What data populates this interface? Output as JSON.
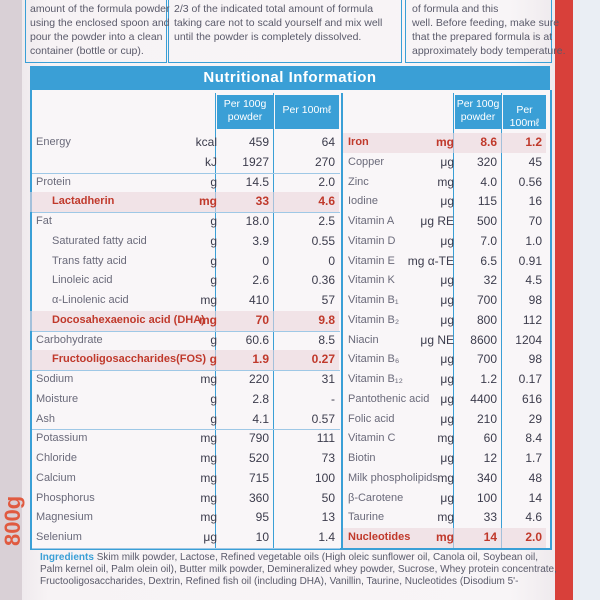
{
  "instructions": [
    "amount of the formula powder\nusing the enclosed spoon and\npour the powder into a clean\ncontainer (bottle or cup).",
    "2/3 of the indicated total amount of formula\ntaking care not to scald yourself and mix well\nuntil the powder is completely dissolved.",
    "of formula and this\nwell. Before feeding, make sure\nthat the prepared formula is at\napproximately body temperature."
  ],
  "table": {
    "title": "Nutritional Information",
    "headers": [
      "Per 100g powder",
      "Per 100mℓ"
    ],
    "left": [
      {
        "name": "Energy",
        "unit": "kcal",
        "per_100g": "459",
        "per_100ml": "64"
      },
      {
        "name": "",
        "unit": "kJ",
        "per_100g": "1927",
        "per_100ml": "270"
      },
      {
        "name": "Protein",
        "unit": "g",
        "per_100g": "14.5",
        "per_100ml": "2.0"
      },
      {
        "name": "Lactadherin",
        "unit": "mg",
        "per_100g": "33",
        "per_100ml": "4.6",
        "highlight": true,
        "indent": true
      },
      {
        "name": "Fat",
        "unit": "g",
        "per_100g": "18.0",
        "per_100ml": "2.5"
      },
      {
        "name": "Saturated fatty acid",
        "unit": "g",
        "per_100g": "3.9",
        "per_100ml": "0.55",
        "indent": true
      },
      {
        "name": "Trans fatty acid",
        "unit": "g",
        "per_100g": "0",
        "per_100ml": "0",
        "indent": true
      },
      {
        "name": "Linoleic acid",
        "unit": "g",
        "per_100g": "2.6",
        "per_100ml": "0.36",
        "indent": true
      },
      {
        "name": "α-Linolenic acid",
        "unit": "mg",
        "per_100g": "410",
        "per_100ml": "57",
        "indent": true
      },
      {
        "name": "Docosahexaenoic acid (DHA)",
        "unit": "mg",
        "per_100g": "70",
        "per_100ml": "9.8",
        "highlight": true,
        "indent": true
      },
      {
        "name": "Carbohydrate",
        "unit": "g",
        "per_100g": "60.6",
        "per_100ml": "8.5"
      },
      {
        "name": "Fructooligosaccharides(FOS)",
        "unit": "g",
        "per_100g": "1.9",
        "per_100ml": "0.27",
        "highlight": true,
        "indent": true
      },
      {
        "name": "Sodium",
        "unit": "mg",
        "per_100g": "220",
        "per_100ml": "31"
      },
      {
        "name": "Moisture",
        "unit": "g",
        "per_100g": "2.8",
        "per_100ml": "-"
      },
      {
        "name": "Ash",
        "unit": "g",
        "per_100g": "4.1",
        "per_100ml": "0.57"
      },
      {
        "name": "Potassium",
        "unit": "mg",
        "per_100g": "790",
        "per_100ml": "111"
      },
      {
        "name": "Chloride",
        "unit": "mg",
        "per_100g": "520",
        "per_100ml": "73"
      },
      {
        "name": "Calcium",
        "unit": "mg",
        "per_100g": "715",
        "per_100ml": "100"
      },
      {
        "name": "Phosphorus",
        "unit": "mg",
        "per_100g": "360",
        "per_100ml": "50"
      },
      {
        "name": "Magnesium",
        "unit": "mg",
        "per_100g": "95",
        "per_100ml": "13"
      },
      {
        "name": "Selenium",
        "unit": "μg",
        "per_100g": "10",
        "per_100ml": "1.4"
      }
    ],
    "right": [
      {
        "name": "Iron",
        "unit": "mg",
        "per_100g": "8.6",
        "per_100ml": "1.2",
        "highlight": true
      },
      {
        "name": "Copper",
        "unit": "μg",
        "per_100g": "320",
        "per_100ml": "45"
      },
      {
        "name": "Zinc",
        "unit": "mg",
        "per_100g": "4.0",
        "per_100ml": "0.56"
      },
      {
        "name": "Iodine",
        "unit": "μg",
        "per_100g": "115",
        "per_100ml": "16"
      },
      {
        "name": "Vitamin A",
        "unit": "μg RE",
        "per_100g": "500",
        "per_100ml": "70"
      },
      {
        "name": "Vitamin D",
        "unit": "μg",
        "per_100g": "7.0",
        "per_100ml": "1.0"
      },
      {
        "name": "Vitamin E",
        "unit": "mg α-TE",
        "per_100g": "6.5",
        "per_100ml": "0.91"
      },
      {
        "name": "Vitamin K",
        "unit": "μg",
        "per_100g": "32",
        "per_100ml": "4.5"
      },
      {
        "name": "Vitamin B₁",
        "unit": "μg",
        "per_100g": "700",
        "per_100ml": "98"
      },
      {
        "name": "Vitamin B₂",
        "unit": "μg",
        "per_100g": "800",
        "per_100ml": "112"
      },
      {
        "name": "Niacin",
        "unit": "μg NE",
        "per_100g": "8600",
        "per_100ml": "1204"
      },
      {
        "name": "Vitamin B₆",
        "unit": "μg",
        "per_100g": "700",
        "per_100ml": "98"
      },
      {
        "name": "Vitamin B₁₂",
        "unit": "μg",
        "per_100g": "1.2",
        "per_100ml": "0.17"
      },
      {
        "name": "Pantothenic acid",
        "unit": "μg",
        "per_100g": "4400",
        "per_100ml": "616"
      },
      {
        "name": "Folic acid",
        "unit": "μg",
        "per_100g": "210",
        "per_100ml": "29"
      },
      {
        "name": "Vitamin C",
        "unit": "mg",
        "per_100g": "60",
        "per_100ml": "8.4"
      },
      {
        "name": "Biotin",
        "unit": "μg",
        "per_100g": "12",
        "per_100ml": "1.7"
      },
      {
        "name": "Milk phospholipids",
        "unit": "mg",
        "per_100g": "340",
        "per_100ml": "48"
      },
      {
        "name": "β-Carotene",
        "unit": "μg",
        "per_100g": "100",
        "per_100ml": "14"
      },
      {
        "name": "Taurine",
        "unit": "mg",
        "per_100g": "33",
        "per_100ml": "4.6"
      },
      {
        "name": "Nucleotides",
        "unit": "mg",
        "per_100g": "14",
        "per_100ml": "2.0",
        "highlight": true
      }
    ]
  },
  "ingredients": {
    "label": "Ingredients",
    "text": "Skim milk powder, Lactose, Refined vegetable oils (High oleic sunflower oil, Canola oil, Soybean oil, Palm kernel oil, Palm olein oil), Butter milk powder, Demineralized whey powder, Sucrose, Whey protein concentrate, Fructooligosaccharides, Dextrin, Refined fish oil (including DHA), Vanillin, Taurine, Nucleotides (Disodium 5'-"
  },
  "net_weight": "800g"
}
